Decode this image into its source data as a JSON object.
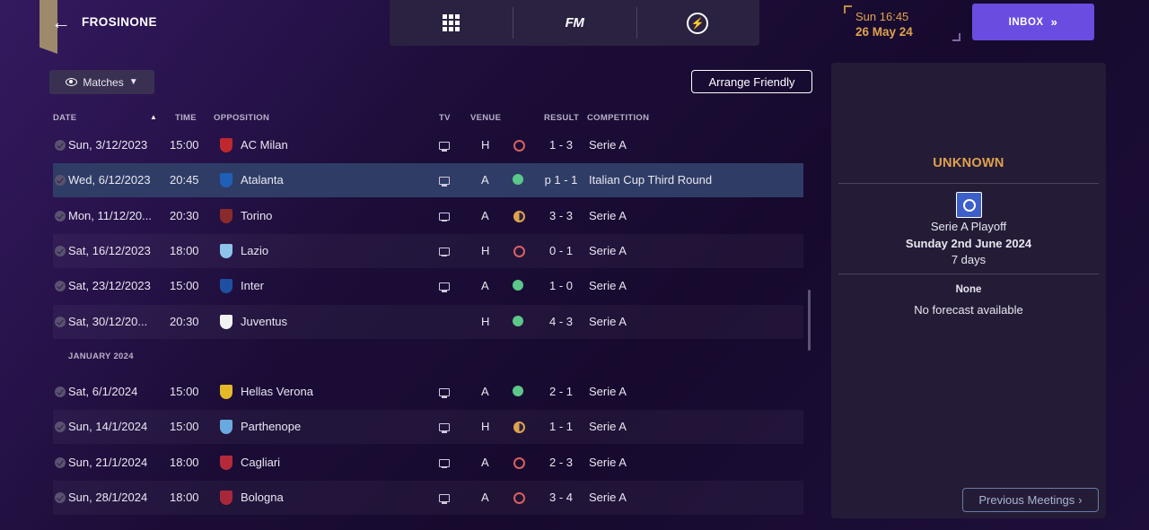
{
  "header": {
    "club_name": "FROSINONE",
    "back_icon": "arrow-left-icon",
    "nav": [
      {
        "icon": "grid-icon"
      },
      {
        "label": "FM"
      },
      {
        "icon": "lightning-icon"
      }
    ],
    "clock": {
      "time": "Sun 16:45",
      "date": "26 May 24"
    },
    "inbox_label": "INBOX"
  },
  "toolbar": {
    "filter_label": "Matches",
    "arrange_label": "Arrange Friendly"
  },
  "table": {
    "columns": {
      "date": "DATE",
      "time": "TIME",
      "opposition": "OPPOSITION",
      "tv": "TV",
      "venue": "VENUE",
      "result": "RESULT",
      "competition": "COMPETITION"
    },
    "section_jan": "JANUARY 2024",
    "rows": [
      {
        "date": "Sun, 3/12/2023",
        "time": "15:00",
        "opposition": "AC Milan",
        "venue": "H",
        "outcome": "L",
        "result": "1 - 3",
        "competition": "Serie A",
        "crest_color": "#c0282d",
        "tv": true
      },
      {
        "date": "Wed, 6/12/2023",
        "time": "20:45",
        "opposition": "Atalanta",
        "venue": "A",
        "outcome": "W",
        "result": "p 1 - 1",
        "competition": "Italian Cup Third Round",
        "crest_color": "#1f5fb8",
        "tv": true
      },
      {
        "date": "Mon, 11/12/20...",
        "time": "20:30",
        "opposition": "Torino",
        "venue": "A",
        "outcome": "D",
        "result": "3 - 3",
        "competition": "Serie A",
        "crest_color": "#8b2a2a",
        "tv": true
      },
      {
        "date": "Sat, 16/12/2023",
        "time": "18:00",
        "opposition": "Lazio",
        "venue": "H",
        "outcome": "L",
        "result": "0 - 1",
        "competition": "Serie A",
        "crest_color": "#8cc4ea",
        "tv": true
      },
      {
        "date": "Sat, 23/12/2023",
        "time": "15:00",
        "opposition": "Inter",
        "venue": "A",
        "outcome": "W",
        "result": "1 - 0",
        "competition": "Serie A",
        "crest_color": "#1f4fa0",
        "tv": true
      },
      {
        "date": "Sat, 30/12/20...",
        "time": "20:30",
        "opposition": "Juventus",
        "venue": "H",
        "outcome": "W",
        "result": "4 - 3",
        "competition": "Serie A",
        "crest_color": "#f2f2f2",
        "tv": false
      },
      {
        "date": "Sat, 6/1/2024",
        "time": "15:00",
        "opposition": "Hellas Verona",
        "venue": "A",
        "outcome": "W",
        "result": "2 - 1",
        "competition": "Serie A",
        "crest_color": "#e3b92a",
        "tv": true
      },
      {
        "date": "Sun, 14/1/2024",
        "time": "15:00",
        "opposition": "Parthenope",
        "venue": "H",
        "outcome": "D",
        "result": "1 - 1",
        "competition": "Serie A",
        "crest_color": "#6aa8e0",
        "tv": true
      },
      {
        "date": "Sun, 21/1/2024",
        "time": "18:00",
        "opposition": "Cagliari",
        "venue": "A",
        "outcome": "L",
        "result": "2 - 3",
        "competition": "Serie A",
        "crest_color": "#b52a3a",
        "tv": true
      },
      {
        "date": "Sun, 28/1/2024",
        "time": "18:00",
        "opposition": "Bologna",
        "venue": "A",
        "outcome": "L",
        "result": "3 - 4",
        "competition": "Serie A",
        "crest_color": "#a8283a",
        "tv": true
      }
    ]
  },
  "panel": {
    "title": "UNKNOWN",
    "competition": "Serie A Playoff",
    "match_date": "Sunday 2nd June 2024",
    "days": "7 days",
    "weather_title": "None",
    "weather_text": "No forecast available",
    "prev_meetings_label": "Previous Meetings"
  },
  "colors": {
    "accent": "#6a4de0",
    "highlight": "#e0a24e",
    "win": "#5cc78a",
    "loss": "#d86060",
    "selected_row": "#2f3d66"
  }
}
